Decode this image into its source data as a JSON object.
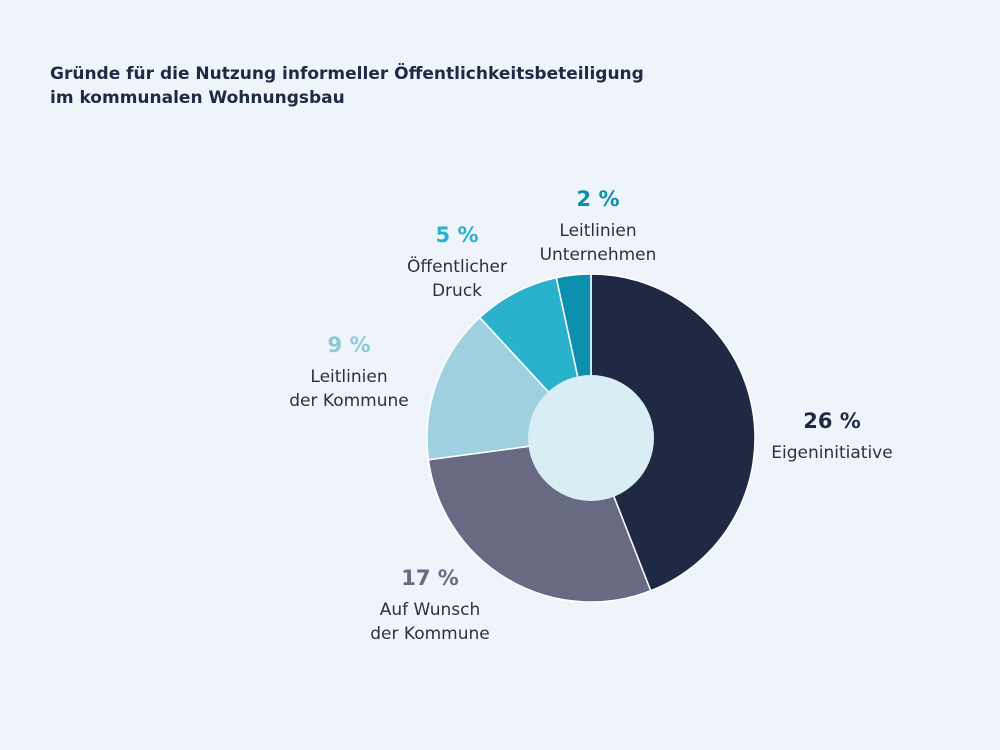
{
  "chart_data": {
    "type": "pie",
    "variant": "donut",
    "title_lines": [
      "Gründe für die Nutzung informeller Öffentlichkeitsbeteiligung",
      "im kommunalen Wohnungsbau"
    ],
    "unit": "%",
    "slices": [
      {
        "value": 26,
        "value_label": "26 %",
        "label_lines": [
          "Eigeninitiative"
        ],
        "color": "#1f2944",
        "label_color": "#1f2944"
      },
      {
        "value": 17,
        "value_label": "17 %",
        "label_lines": [
          "Auf Wunsch",
          "der Kommune"
        ],
        "color": "#676a82",
        "label_color": "#676a82"
      },
      {
        "value": 9,
        "value_label": "9 %",
        "label_lines": [
          "Leitlinien",
          "der Kommune"
        ],
        "color": "#9fd0df",
        "label_color": "#8fc8db"
      },
      {
        "value": 5,
        "value_label": "5 %",
        "label_lines": [
          "Öffentlicher",
          "Druck"
        ],
        "color": "#2ab1cb",
        "label_color": "#2ab1cb"
      },
      {
        "value": 2,
        "value_label": "2 %",
        "label_lines": [
          "Leitlinien",
          "Unternehmen"
        ],
        "color": "#0b8fad",
        "label_color": "#0b8fad"
      }
    ],
    "center_color": "#d9edf4",
    "text_color": "#2b3140",
    "legend": "none"
  }
}
